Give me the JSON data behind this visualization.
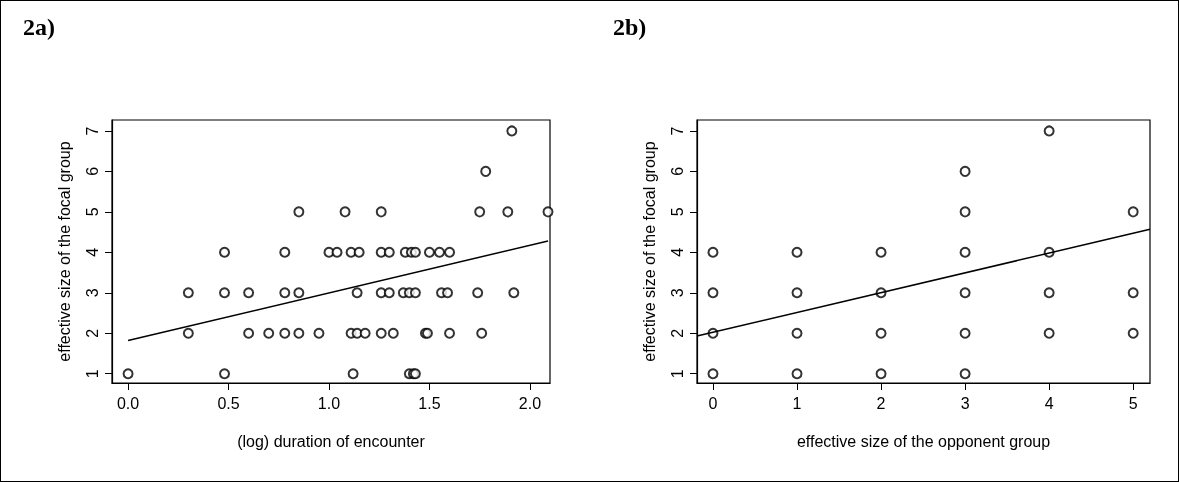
{
  "chart_data": [
    {
      "type": "scatter",
      "title": "2a)",
      "xlabel": "(log) duration of encounter",
      "ylabel": "effective size of the focal group",
      "xlim": [
        -0.08,
        2.1
      ],
      "xticks": [
        {
          "value": 0,
          "label": "0.0"
        },
        {
          "value": 0.5,
          "label": "0.5"
        },
        {
          "value": 1,
          "label": "1.0"
        },
        {
          "value": 1.5,
          "label": "1.5"
        },
        {
          "value": 2,
          "label": "2.0"
        }
      ],
      "ylim": [
        0.77,
        7.27
      ],
      "yticks": [
        1,
        2,
        3,
        4,
        5,
        6,
        7
      ],
      "grid": false,
      "series": [
        {
          "type": "scatter",
          "marker": "circle",
          "color": "#000000",
          "x": [
            1.91,
            1.78,
            0.85,
            1.08,
            1.26,
            1.75,
            1.89,
            2.09,
            0.48,
            0.78,
            1.0,
            1.04,
            1.11,
            1.15,
            1.26,
            1.3,
            1.38,
            1.41,
            1.43,
            1.5,
            1.55,
            1.6,
            0.3,
            0.48,
            0.6,
            0.78,
            0.85,
            1.14,
            1.26,
            1.3,
            1.37,
            1.4,
            1.43,
            1.56,
            1.59,
            1.74,
            1.92,
            0.3,
            0.6,
            0.7,
            0.78,
            0.85,
            0.95,
            1.11,
            1.14,
            1.18,
            1.26,
            1.32,
            1.48,
            1.49,
            1.6,
            1.76,
            0.0,
            0.48,
            1.12,
            1.4,
            1.42,
            1.43
          ],
          "values": [
            7,
            6,
            5,
            5,
            5,
            5,
            5,
            5,
            4,
            4,
            4,
            4,
            4,
            4,
            4,
            4,
            4,
            4,
            4,
            4,
            4,
            4,
            3,
            3,
            3,
            3,
            3,
            3,
            3,
            3,
            3,
            3,
            3,
            3,
            3,
            3,
            3,
            2,
            2,
            2,
            2,
            2,
            2,
            2,
            2,
            2,
            2,
            2,
            2,
            2,
            2,
            2,
            1,
            1,
            1,
            1,
            1,
            1
          ]
        },
        {
          "type": "line",
          "marker": "none",
          "line_style": "solid",
          "color": "#000000",
          "x": [
            0,
            2.09
          ],
          "values": [
            1.82,
            4.28
          ]
        }
      ]
    },
    {
      "type": "scatter",
      "title": "2b)",
      "xlabel": "effective size of the opponent group",
      "ylabel": "effective size of the focal group",
      "xlim": [
        -0.19,
        5.2
      ],
      "xticks": [
        0,
        1,
        2,
        3,
        4,
        5
      ],
      "ylim": [
        0.77,
        7.27
      ],
      "yticks": [
        1,
        2,
        3,
        4,
        5,
        6,
        7
      ],
      "grid": false,
      "series": [
        {
          "type": "scatter",
          "marker": "circle",
          "color": "#000000",
          "x": [
            0,
            0,
            0,
            0,
            1,
            1,
            1,
            1,
            2,
            2,
            2,
            2,
            3,
            3,
            3,
            3,
            3,
            3,
            4,
            4,
            4,
            4,
            5,
            5,
            5
          ],
          "values": [
            1,
            2,
            3,
            4,
            1,
            2,
            3,
            4,
            1,
            2,
            3,
            4,
            1,
            2,
            3,
            4,
            5,
            6,
            2,
            3,
            4,
            7,
            2,
            3,
            5
          ]
        },
        {
          "type": "line",
          "marker": "none",
          "line_style": "solid",
          "color": "#000000",
          "x": [
            -0.19,
            5.2
          ],
          "values": [
            1.93,
            4.57
          ]
        }
      ]
    }
  ]
}
